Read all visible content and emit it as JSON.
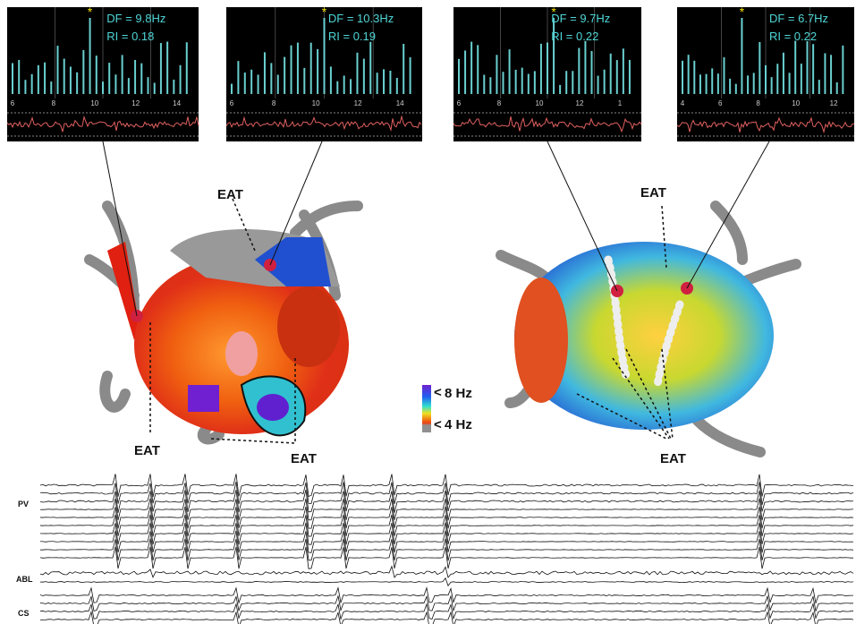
{
  "panels": [
    {
      "marker": "*",
      "df": "DF = 9.8Hz",
      "ri": "RI =  0.18",
      "ticks": [
        "6",
        "8",
        "10",
        "12",
        "14"
      ]
    },
    {
      "marker": "*",
      "df": "DF = 10.3Hz",
      "ri": "RI =  0.19",
      "ticks": [
        "6",
        "8",
        "10",
        "12",
        "14"
      ]
    },
    {
      "marker": "*",
      "df": "DF = 9.7Hz",
      "ri": "RI =  0.22",
      "ticks": [
        "6",
        "8",
        "10",
        "12",
        "1"
      ]
    },
    {
      "marker": "*",
      "df": "DF = 6.7Hz",
      "ri": "RI =  0.22",
      "ticks": [
        "4",
        "6",
        "8",
        "10",
        "12"
      ]
    }
  ],
  "annotations": {
    "left_top": "EAT",
    "left_bottom_left": "EAT",
    "left_bottom_right": "EAT",
    "right_top": "EAT",
    "right_bottom": "EAT"
  },
  "legend": {
    "high": "8 Hz",
    "low": "4 Hz"
  },
  "traces": {
    "pv": "PV",
    "abl": "ABL",
    "cs": "CS"
  }
}
